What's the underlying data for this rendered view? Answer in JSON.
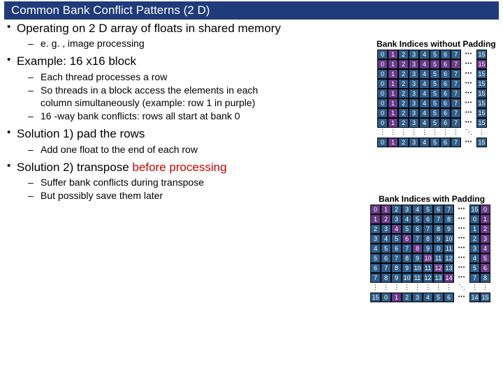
{
  "title": "Common Bank Conflict Patterns (2 D)",
  "bullets": [
    {
      "text": "Operating on 2 D array of floats in shared memory",
      "sub": [
        "e. g. , image processing"
      ]
    },
    {
      "text": "Example: 16 x16 block",
      "sub": [
        "Each thread processes a row",
        "So threads in a block access the elements in each column simultaneously (example: row 1 in purple)",
        "16 -way bank conflicts: rows all start at bank 0"
      ]
    },
    {
      "text": "Solution 1) pad the rows",
      "sub": [
        "Add one float to the end of each row"
      ]
    },
    {
      "html": "Solution 2) transpose <span class='red'>before processing</span>",
      "sub": [
        "Suffer bank conflicts during transpose",
        "But possibly save them later"
      ]
    }
  ],
  "fig1_label": "Bank Indices without Padding",
  "fig2_label": "Bank Indices with Padding",
  "grid_vals_nopad": [
    "0",
    "1",
    "2",
    "3",
    "4",
    "5",
    "6",
    "7",
    "15"
  ],
  "grid_vals_pad": [
    [
      "0",
      "1",
      "2",
      "3",
      "4",
      "5",
      "6",
      "7",
      "15",
      "0"
    ],
    [
      "1",
      "2",
      "3",
      "4",
      "5",
      "6",
      "7",
      "8",
      "0",
      "1"
    ],
    [
      "2",
      "3",
      "4",
      "5",
      "6",
      "7",
      "8",
      "9",
      "1",
      "2"
    ],
    [
      "3",
      "4",
      "5",
      "6",
      "7",
      "8",
      "9",
      "10",
      "2",
      "3"
    ],
    [
      "4",
      "5",
      "6",
      "7",
      "8",
      "9",
      "0",
      "11",
      "3",
      "4"
    ],
    [
      "5",
      "6",
      "7",
      "8",
      "9",
      "10",
      "11",
      "12",
      "4",
      "5"
    ],
    [
      "6",
      "7",
      "8",
      "9",
      "10",
      "11",
      "12",
      "13",
      "5",
      "6"
    ],
    [
      "7",
      "8",
      "9",
      "10",
      "11",
      "12",
      "13",
      "14",
      "7",
      "8"
    ],
    [
      "15",
      "0",
      "1",
      "2",
      "3",
      "4",
      "5",
      "6",
      "14",
      "15"
    ]
  ],
  "colors": {
    "titlebar": "#1f3b7a",
    "cell": "#2e5e8a",
    "purple": "#6a3a8a",
    "red": "#cc0000"
  }
}
